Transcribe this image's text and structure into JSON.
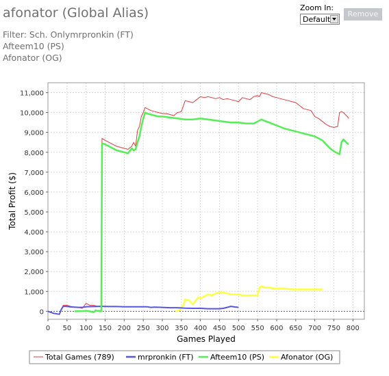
{
  "header": {
    "title": "afonator (Global Alias)",
    "filter_lines": [
      "Filter: Sch. Onlymrpronkin (FT)",
      "Afteem10 (PS)",
      "Afonator (OG)"
    ]
  },
  "zoom": {
    "label": "Zoom In:",
    "selected": "Default"
  },
  "remove_button": {
    "label": "Remove"
  },
  "chart_data": {
    "type": "line",
    "xlabel": "Games Played",
    "ylabel": "Total Profit ($)",
    "xlim": [
      0,
      830
    ],
    "ylim": [
      -400,
      11500
    ],
    "x_ticks": [
      0,
      50,
      100,
      150,
      200,
      250,
      300,
      350,
      400,
      450,
      500,
      550,
      600,
      650,
      700,
      750,
      800
    ],
    "x_tick_labels": [
      "0",
      "50",
      "100",
      "150",
      "200",
      "250",
      "300",
      "350",
      "400",
      "450",
      "500",
      "550",
      "600",
      "650",
      "700",
      "750",
      "800"
    ],
    "y_ticks": [
      0,
      1000,
      2000,
      3000,
      4000,
      5000,
      6000,
      7000,
      8000,
      9000,
      10000,
      11000
    ],
    "y_tick_labels": [
      "0",
      "1,000",
      "2,000",
      "3,000",
      "4,000",
      "5,000",
      "6,000",
      "7,000",
      "8,000",
      "9,000",
      "10,000",
      "11,000"
    ],
    "grid": true,
    "legend_position": "bottom",
    "series": [
      {
        "name": "Total Games (789)",
        "color": "#e8383c",
        "x": [
          0,
          15,
          30,
          35,
          40,
          50,
          60,
          70,
          80,
          90,
          100,
          110,
          120,
          130,
          138,
          140,
          142,
          150,
          160,
          170,
          180,
          190,
          200,
          210,
          220,
          225,
          230,
          235,
          240,
          245,
          250,
          255,
          260,
          270,
          280,
          290,
          300,
          310,
          320,
          330,
          340,
          350,
          360,
          370,
          380,
          390,
          400,
          410,
          420,
          430,
          440,
          450,
          460,
          470,
          480,
          490,
          500,
          510,
          520,
          530,
          540,
          550,
          555,
          560,
          570,
          580,
          590,
          600,
          610,
          620,
          630,
          640,
          650,
          660,
          670,
          680,
          690,
          700,
          710,
          720,
          730,
          740,
          750,
          760,
          765,
          770,
          775,
          780,
          785,
          789
        ],
        "y": [
          0,
          -100,
          -150,
          100,
          300,
          300,
          250,
          200,
          200,
          150,
          400,
          300,
          300,
          250,
          250,
          250,
          8700,
          8600,
          8500,
          8400,
          8300,
          8250,
          8200,
          8150,
          8300,
          8500,
          8300,
          9100,
          9300,
          9800,
          10000,
          10250,
          10200,
          10100,
          10050,
          10000,
          9950,
          9950,
          9900,
          9850,
          10000,
          10050,
          10600,
          10550,
          10500,
          10650,
          10800,
          10750,
          10800,
          10750,
          10700,
          10750,
          10650,
          10700,
          10650,
          10600,
          10550,
          10750,
          10700,
          10650,
          10800,
          10850,
          10800,
          11000,
          10950,
          10900,
          10800,
          10750,
          10700,
          10650,
          10600,
          10550,
          10500,
          10350,
          10200,
          10150,
          10100,
          9800,
          9700,
          9550,
          9400,
          9300,
          9250,
          9300,
          10000,
          10050,
          10000,
          9900,
          9800,
          9700
        ]
      },
      {
        "name": "mrpronkin (FT)",
        "color": "#5555e0",
        "x": [
          0,
          15,
          30,
          35,
          40,
          50,
          60,
          70,
          80,
          90,
          100,
          120,
          140,
          160,
          180,
          200,
          220,
          240,
          260,
          270,
          280,
          300,
          320,
          340,
          360,
          380,
          400,
          420,
          440,
          450,
          460,
          470,
          480,
          490,
          500
        ],
        "y": [
          0,
          -100,
          -150,
          100,
          250,
          250,
          220,
          210,
          200,
          200,
          230,
          240,
          250,
          240,
          240,
          230,
          230,
          230,
          230,
          200,
          210,
          200,
          180,
          180,
          160,
          150,
          150,
          130,
          130,
          130,
          150,
          200,
          250,
          220,
          200
        ]
      },
      {
        "name": "Afteem10 (PS)",
        "color": "#55ee55",
        "x": [
          70,
          90,
          100,
          110,
          120,
          125,
          130,
          138,
          140,
          142,
          150,
          160,
          170,
          180,
          190,
          200,
          210,
          220,
          225,
          230,
          235,
          240,
          245,
          250,
          255,
          260,
          270,
          280,
          290,
          300,
          320,
          340,
          360,
          380,
          400,
          420,
          440,
          460,
          480,
          500,
          520,
          540,
          560,
          580,
          600,
          620,
          640,
          660,
          680,
          700,
          720,
          730,
          740,
          750,
          760,
          765,
          770,
          775,
          780,
          785,
          789
        ],
        "y": [
          0,
          10,
          20,
          0,
          -50,
          50,
          20,
          0,
          0,
          8450,
          8400,
          8300,
          8200,
          8100,
          8050,
          8000,
          7950,
          8200,
          8100,
          8150,
          8500,
          8800,
          9300,
          9700,
          10000,
          9950,
          9900,
          9850,
          9800,
          9800,
          9750,
          9700,
          9650,
          9650,
          9700,
          9650,
          9600,
          9550,
          9500,
          9500,
          9450,
          9450,
          9650,
          9500,
          9350,
          9200,
          9100,
          9000,
          8900,
          8800,
          8600,
          8400,
          8200,
          8050,
          7950,
          7900,
          8500,
          8650,
          8550,
          8450,
          8400
        ]
      },
      {
        "name": "Afonator (OG)",
        "color": "#ffff44",
        "x": [
          335,
          345,
          355,
          360,
          370,
          375,
          380,
          390,
          395,
          400,
          410,
          420,
          430,
          440,
          450,
          460,
          470,
          480,
          490,
          500,
          510,
          520,
          530,
          540,
          550,
          555,
          560,
          570,
          580,
          590,
          600,
          620,
          640,
          660,
          680,
          700,
          720
        ],
        "y": [
          0,
          50,
          300,
          600,
          550,
          450,
          350,
          600,
          700,
          650,
          750,
          850,
          800,
          900,
          950,
          950,
          900,
          850,
          850,
          850,
          800,
          800,
          800,
          800,
          800,
          1200,
          1250,
          1200,
          1200,
          1150,
          1150,
          1150,
          1100,
          1100,
          1100,
          1100,
          1100
        ]
      }
    ]
  }
}
